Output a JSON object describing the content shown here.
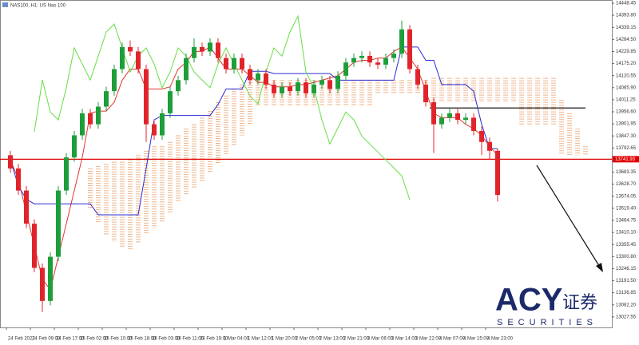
{
  "chart_data": {
    "type": "candlestick",
    "title": "NAS100, H1: US Nas 100",
    "categories": [
      "24 Feb 2022",
      null,
      null,
      "24 Feb 09:00",
      null,
      null,
      "24 Feb 17:00",
      null,
      null,
      "25 Feb 02:00",
      null,
      null,
      "25 Feb 10:00",
      null,
      null,
      "25 Feb 18:00",
      null,
      null,
      "28 Feb 03:00",
      null,
      null,
      "28 Feb 11:00",
      null,
      null,
      "28 Feb 19:00",
      null,
      null,
      "1 Mar 04:00",
      null,
      null,
      "1 Mar 12:00",
      null,
      null,
      "1 Mar 20:00",
      null,
      null,
      "2 Mar 05:00",
      null,
      null,
      "2 Mar 13:00",
      null,
      null,
      "2 Mar 21:00",
      null,
      null,
      "3 Mar 06:00",
      null,
      null,
      "3 Mar 14:00",
      null,
      null,
      "3 Mar 22:00",
      null,
      null,
      "4 Mar 07:00",
      null,
      null,
      "4 Mar 15:00",
      null,
      null,
      "4 Mar 23:00",
      null
    ],
    "open": [
      13760,
      13700,
      13600,
      13450,
      13250,
      13100,
      13300,
      13600,
      13750,
      13850,
      13950,
      13900,
      13980,
      14050,
      14150,
      14250,
      14230,
      14150,
      13900,
      13850,
      13950,
      14050,
      14100,
      14200,
      14250,
      14230,
      14270,
      14200,
      14150,
      14200,
      14150,
      14100,
      14130,
      14080,
      14040,
      14070,
      14050,
      14090,
      14040,
      14080,
      14100,
      14060,
      14120,
      14180,
      14200,
      14210,
      14180,
      14170,
      14200,
      14220,
      14330,
      14150,
      14080,
      14000,
      13900,
      13930,
      13950,
      13920,
      13930,
      13870,
      13820,
      13780
    ],
    "high": [
      13780,
      13720,
      13620,
      13470,
      13270,
      13320,
      13620,
      13770,
      13870,
      13970,
      13970,
      14000,
      14070,
      14170,
      14270,
      14280,
      14250,
      14170,
      13920,
      13970,
      14070,
      14120,
      14220,
      14290,
      14270,
      14290,
      14290,
      14220,
      14220,
      14220,
      14170,
      14150,
      14150,
      14100,
      14090,
      14090,
      14110,
      14110,
      14100,
      14120,
      14120,
      14140,
      14200,
      14220,
      14230,
      14230,
      14200,
      14220,
      14240,
      14370,
      14350,
      14170,
      14100,
      14020,
      13950,
      13970,
      13970,
      13950,
      13950,
      13890,
      13840,
      13790
    ],
    "low": [
      13680,
      13580,
      13430,
      13230,
      13050,
      13080,
      13280,
      13580,
      13730,
      13830,
      13880,
      13880,
      13960,
      14030,
      14130,
      14210,
      14130,
      13820,
      13830,
      13830,
      13930,
      14030,
      14080,
      14180,
      14210,
      14210,
      14180,
      14130,
      14130,
      14130,
      14080,
      14080,
      14060,
      14020,
      14020,
      14030,
      14030,
      14020,
      14020,
      14060,
      14040,
      14040,
      14100,
      14160,
      14180,
      14160,
      14150,
      14150,
      14180,
      14200,
      14130,
      14060,
      13980,
      13770,
      13880,
      13910,
      13900,
      13900,
      13850,
      13760,
      13740,
      13550
    ],
    "close": [
      13700,
      13600,
      13450,
      13250,
      13100,
      13300,
      13600,
      13750,
      13850,
      13950,
      13900,
      13980,
      14050,
      14150,
      14250,
      14230,
      14150,
      13900,
      13850,
      13950,
      14050,
      14100,
      14200,
      14250,
      14230,
      14270,
      14200,
      14150,
      14200,
      14150,
      14100,
      14130,
      14080,
      14040,
      14070,
      14050,
      14090,
      14040,
      14080,
      14100,
      14060,
      14120,
      14180,
      14200,
      14210,
      14180,
      14170,
      14200,
      14220,
      14330,
      14150,
      14080,
      14000,
      13900,
      13930,
      13950,
      13920,
      13930,
      13870,
      13820,
      13780,
      13580
    ],
    "up_color": "#1e9e3a",
    "down_color": "#e0242b",
    "series": [
      {
        "color": "#e3342f",
        "values": [
          13740,
          13650,
          13500,
          13350,
          13200,
          13150,
          13300,
          13450,
          13600,
          13750,
          13950,
          13960,
          13960,
          14000,
          14100,
          14150,
          14150,
          14060,
          14060,
          14060,
          14070,
          14150,
          14180,
          14230,
          14230,
          14250,
          14200,
          14150,
          14150,
          14150,
          14120,
          14090,
          14090,
          14070,
          14070,
          14070,
          14080,
          14080,
          14090,
          14100,
          14110,
          14120,
          14150,
          14180,
          14190,
          14190,
          14200,
          14200,
          14230,
          14250,
          14200,
          14150,
          14050,
          13950,
          13930,
          13930,
          13930,
          13900,
          13880,
          13850,
          13800,
          13760
        ]
      },
      {
        "color": "#2b2bd6",
        "values": [
          13740,
          13620,
          13560,
          13540,
          13540,
          13540,
          13540,
          13540,
          13540,
          13540,
          13540,
          13490,
          13490,
          13490,
          13490,
          13490,
          13490,
          13700,
          13920,
          13940,
          13940,
          13940,
          13940,
          13940,
          13940,
          13940,
          13990,
          14060,
          14060,
          14060,
          14140,
          14140,
          14140,
          14130,
          14130,
          14130,
          14130,
          14130,
          14130,
          14130,
          14130,
          14100,
          14100,
          14100,
          14100,
          14100,
          14100,
          14100,
          14100,
          14250,
          14250,
          14250,
          14190,
          14190,
          14080,
          14080,
          14080,
          14080,
          14050,
          13900,
          13790,
          13790
        ]
      },
      {
        "color": "#66dd44",
        "values": [
          null,
          null,
          null,
          13866,
          14101,
          13956,
          13920,
          14065,
          14246,
          14173,
          14101,
          14209,
          14318,
          14354,
          14246,
          14137,
          14209,
          14246,
          14173,
          14065,
          14137,
          14246,
          14209,
          14137,
          14101,
          14065,
          14173,
          14246,
          14173,
          14101,
          14028,
          13992,
          14137,
          14246,
          14209,
          14318,
          14390,
          14137,
          14065,
          13920,
          13811,
          13884,
          13956,
          13920,
          13847,
          13811,
          13775,
          13739,
          13703,
          13666,
          13558,
          null,
          null,
          null,
          null,
          null,
          null,
          null,
          null,
          null,
          null,
          null
        ]
      }
    ],
    "cloud": {
      "color": "#e8955a",
      "span_a": [
        null,
        null,
        null,
        null,
        null,
        null,
        null,
        null,
        null,
        null,
        13700,
        13710,
        13720,
        13730,
        13730,
        13740,
        13760,
        13780,
        13800,
        13800,
        13820,
        13850,
        13880,
        13900,
        13930,
        13960,
        14000,
        14030,
        14060,
        14080,
        14090,
        14100,
        14100,
        14100,
        14100,
        14100,
        14100,
        14100,
        14100,
        14100,
        14100,
        14100,
        14100,
        14100,
        14100,
        14100,
        14100,
        14100,
        14100,
        14100,
        14100,
        14100,
        14100,
        14110,
        14110,
        14110,
        14110,
        14110,
        14110,
        14110,
        14110,
        14110,
        14110,
        14110,
        14110,
        14110,
        14110,
        14110,
        14110,
        14010,
        13950,
        13880,
        13800
      ],
      "span_b": [
        null,
        null,
        null,
        null,
        null,
        null,
        null,
        null,
        null,
        null,
        13520,
        13450,
        13400,
        13370,
        13340,
        13330,
        13360,
        13400,
        13430,
        13460,
        13500,
        13550,
        13580,
        13610,
        13640,
        13680,
        13720,
        13760,
        13800,
        13850,
        13900,
        13980,
        13980,
        13980,
        13980,
        13980,
        13980,
        13980,
        13980,
        13980,
        13980,
        13980,
        13980,
        13980,
        13980,
        13980,
        14040,
        14040,
        14040,
        14040,
        14040,
        14040,
        14040,
        14000,
        14000,
        14000,
        14000,
        14000,
        14000,
        14000,
        14000,
        14000,
        14000,
        14000,
        13900,
        13900,
        13900,
        13900,
        13900,
        13760,
        13760,
        13760,
        13760
      ]
    },
    "hlines": [
      {
        "value": 13741.93,
        "color": "#e00000",
        "labelled": true
      },
      {
        "value": 13974,
        "color": "#000000",
        "start": 53
      }
    ],
    "ylim": [
      12980,
      14463
    ],
    "yticks": [
      13027.55,
      {
        "value": 13082.2,
        "label": "13082.20"
      },
      13136.85,
      {
        "value": 13191.5,
        "label": "13191.50"
      },
      13246.15,
      {
        "value": 13300.8,
        "label": "13300.80"
      },
      13355.45,
      {
        "value": 13410.1,
        "label": "13410.10"
      },
      13464.75,
      {
        "value": 13519.4,
        "label": "13519.40"
      },
      13574.05,
      {
        "value": 13628.7,
        "label": "13628.70"
      },
      13683.35,
      {
        "value": 13847.3,
        "label": "13847.30"
      },
      13792.65,
      13901.95,
      {
        "value": 13956.6,
        "label": "13956.60"
      },
      14011.25,
      {
        "value": 14065.9,
        "label": "14065.90"
      },
      14120.55,
      {
        "value": 14175.2,
        "label": "14175.20"
      },
      14229.85,
      {
        "value": 14284.5,
        "label": "14284.50"
      },
      14339.15,
      {
        "value": 14393.8,
        "label": "14393.80"
      },
      14448.45
    ],
    "watermark": {
      "brand": "ACY",
      "chinese": "证券",
      "tagline": "SECURITIES"
    }
  }
}
